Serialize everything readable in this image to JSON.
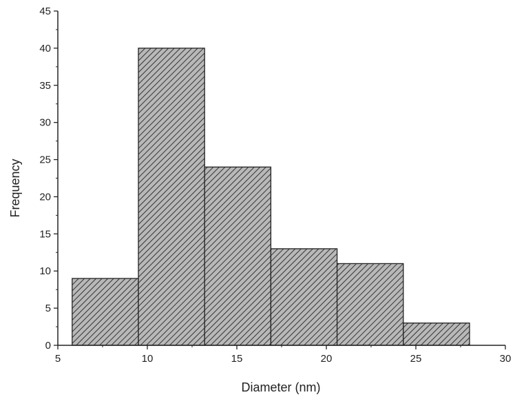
{
  "chart_data": {
    "type": "bar",
    "title": "",
    "xlabel": "Diameter (nm)",
    "ylabel": "Frequency",
    "xlim": [
      5,
      30
    ],
    "ylim": [
      0,
      45
    ],
    "x_ticks": [
      5,
      10,
      15,
      20,
      25,
      30
    ],
    "y_ticks": [
      0,
      5,
      10,
      15,
      20,
      25,
      30,
      35,
      40,
      45
    ],
    "bins": [
      {
        "start": 5.8,
        "end": 9.5,
        "value": 9
      },
      {
        "start": 9.5,
        "end": 13.2,
        "value": 40
      },
      {
        "start": 13.2,
        "end": 16.9,
        "value": 24
      },
      {
        "start": 16.9,
        "end": 20.6,
        "value": 13
      },
      {
        "start": 20.6,
        "end": 24.3,
        "value": 11
      },
      {
        "start": 24.3,
        "end": 28.0,
        "value": 3
      }
    ],
    "bar_fill": "#b8b8b8",
    "bar_hatch": "#333333",
    "grid": false,
    "legend": "none"
  }
}
